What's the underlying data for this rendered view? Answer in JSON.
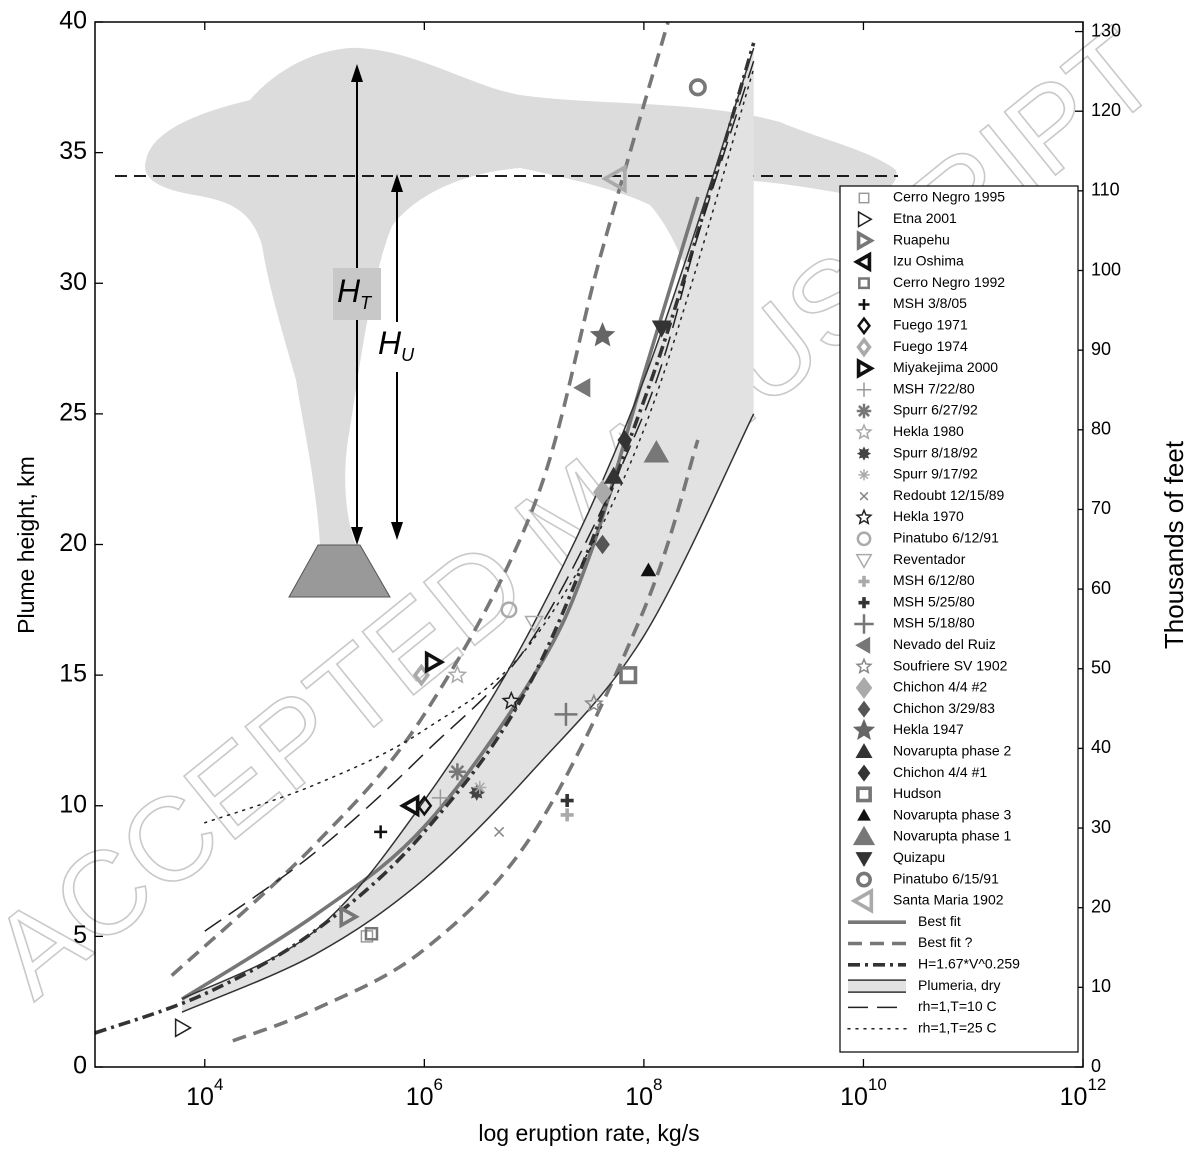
{
  "chart_data": {
    "type": "scatter",
    "xscale": "log",
    "xlim": [
      1000,
      1000000000000
    ],
    "xticks": [
      {
        "value": 10000,
        "label": "10",
        "exponent": "4"
      },
      {
        "value": 1000000,
        "label": "10",
        "exponent": "6"
      },
      {
        "value": 100000000,
        "label": "10",
        "exponent": "8"
      },
      {
        "value": 10000000000,
        "label": "10",
        "exponent": "10"
      },
      {
        "value": 1000000000000,
        "label": "10",
        "exponent": "12"
      }
    ],
    "ylim": [
      0,
      40
    ],
    "yticks": [
      0,
      5,
      10,
      15,
      20,
      25,
      30,
      35,
      40
    ],
    "y2lim": [
      0,
      131.2
    ],
    "y2ticks": [
      0,
      10,
      20,
      30,
      40,
      50,
      60,
      70,
      80,
      90,
      100,
      110,
      120,
      130
    ],
    "x_label": "log eruption rate, kg/s",
    "y_label": "Plume height, km",
    "y2_label": "Thousands of feet",
    "grid": false,
    "legend": "lower right",
    "watermark": "ACCEPTED MANUSCRIPT",
    "annotations": [
      {
        "text": "H",
        "subscript": "T"
      },
      {
        "text": "H",
        "subscript": "U"
      }
    ],
    "series": [
      {
        "name": "Cerro Negro 1995",
        "marker": "square",
        "color": "#9a9a9a",
        "filled": false,
        "marker_size": "small",
        "weight": "thin",
        "x": [
          300000
        ],
        "values": [
          5
        ]
      },
      {
        "name": "Etna 2001",
        "marker": "tri-right",
        "color": "#222222",
        "filled": false,
        "marker_size": "medium",
        "weight": "thin",
        "x": [
          6200
        ],
        "values": [
          1.5
        ]
      },
      {
        "name": "Ruapehu",
        "marker": "tri-right",
        "color": "#777777",
        "filled": false,
        "marker_size": "medium",
        "weight": "thick",
        "x": [
          200000
        ],
        "values": [
          5.75
        ]
      },
      {
        "name": "Izu Oshima",
        "marker": "tri-left",
        "color": "#111111",
        "filled": false,
        "marker_size": "medium",
        "weight": "thick",
        "x": [
          760000
        ],
        "values": [
          10
        ]
      },
      {
        "name": "Cerro Negro 1992",
        "marker": "square",
        "color": "#777777",
        "filled": false,
        "marker_size": "small",
        "weight": "medium",
        "x": [
          330000
        ],
        "values": [
          5.1
        ]
      },
      {
        "name": "MSH 3/8/05",
        "marker": "plus",
        "color": "#111111",
        "filled": false,
        "marker_size": "small",
        "weight": "medium",
        "x": [
          400000
        ],
        "values": [
          9
        ]
      },
      {
        "name": "Fuego 1971",
        "marker": "diamond",
        "color": "#111111",
        "filled": false,
        "marker_size": "medium",
        "weight": "medium",
        "x": [
          1000000
        ],
        "values": [
          10
        ]
      },
      {
        "name": "Fuego 1974",
        "marker": "diamond",
        "color": "#aaaaaa",
        "filled": false,
        "marker_size": "medium",
        "weight": "thick",
        "x": [
          940000
        ],
        "values": [
          15
        ]
      },
      {
        "name": "Miyakejima 2000",
        "marker": "tri-right",
        "color": "#111111",
        "filled": false,
        "marker_size": "medium",
        "weight": "thick",
        "x": [
          1200000
        ],
        "values": [
          15.5
        ]
      },
      {
        "name": "MSH 7/22/80",
        "marker": "plus",
        "color": "#999999",
        "filled": false,
        "marker_size": "medium",
        "weight": "thin",
        "x": [
          1400000
        ],
        "values": [
          10.3
        ]
      },
      {
        "name": "Spurr 6/27/92",
        "marker": "asterisk",
        "color": "#777777",
        "filled": false,
        "marker_size": "medium",
        "weight": "medium",
        "x": [
          2000000
        ],
        "values": [
          11.3
        ]
      },
      {
        "name": "Hekla 1980",
        "marker": "star",
        "color": "#aaaaaa",
        "filled": false,
        "marker_size": "medium",
        "weight": "thin",
        "x": [
          2000000
        ],
        "values": [
          15
        ]
      },
      {
        "name": "Spurr 8/18/92",
        "marker": "burst",
        "color": "#444444",
        "filled": true,
        "marker_size": "small",
        "weight": "thin",
        "x": [
          3000000
        ],
        "values": [
          10.5
        ]
      },
      {
        "name": "Spurr 9/17/92",
        "marker": "asterisk",
        "color": "#aaaaaa",
        "filled": false,
        "marker_size": "small",
        "weight": "thin",
        "x": [
          3200000
        ],
        "values": [
          10.7
        ]
      },
      {
        "name": "Redoubt 12/15/89",
        "marker": "x",
        "color": "#888888",
        "filled": false,
        "marker_size": "small",
        "weight": "thin",
        "x": [
          4800000
        ],
        "values": [
          9
        ]
      },
      {
        "name": "Hekla 1970",
        "marker": "star",
        "color": "#222222",
        "filled": false,
        "marker_size": "medium",
        "weight": "thin",
        "x": [
          6200000
        ],
        "values": [
          14
        ]
      },
      {
        "name": "Pinatubo 6/12/91",
        "marker": "circle",
        "color": "#aaaaaa",
        "filled": false,
        "marker_size": "medium",
        "weight": "medium",
        "x": [
          5900000
        ],
        "values": [
          17.5
        ]
      },
      {
        "name": "Reventador",
        "marker": "tri-down",
        "color": "#aaaaaa",
        "filled": false,
        "marker_size": "medium",
        "weight": "thin",
        "x": [
          10000000
        ],
        "values": [
          17
        ]
      },
      {
        "name": "MSH 6/12/80",
        "marker": "plus",
        "color": "#aaaaaa",
        "filled": false,
        "marker_size": "small",
        "weight": "thick",
        "x": [
          20000000
        ],
        "values": [
          9.65
        ]
      },
      {
        "name": "MSH 5/25/80",
        "marker": "plus",
        "color": "#333333",
        "filled": false,
        "marker_size": "small",
        "weight": "thick",
        "x": [
          20000000
        ],
        "values": [
          10.2
        ]
      },
      {
        "name": "MSH 5/18/80",
        "marker": "plus",
        "color": "#777777",
        "filled": false,
        "marker_size": "large",
        "weight": "medium",
        "x": [
          19500000
        ],
        "values": [
          13.5
        ]
      },
      {
        "name": "Nevado del Ruiz",
        "marker": "tri-left",
        "color": "#777777",
        "filled": true,
        "marker_size": "medium",
        "weight": "thin",
        "x": [
          28000000
        ],
        "values": [
          26
        ]
      },
      {
        "name": "Soufriere SV 1902",
        "marker": "star",
        "color": "#888888",
        "filled": false,
        "marker_size": "medium",
        "weight": "thin",
        "x": [
          35000000
        ],
        "values": [
          13.9
        ]
      },
      {
        "name": "Chichon 4/4 #2",
        "marker": "diamond",
        "color": "#aaaaaa",
        "filled": true,
        "marker_size": "large",
        "weight": "thin",
        "x": [
          42000000
        ],
        "values": [
          22
        ]
      },
      {
        "name": "Chichon 3/29/83",
        "marker": "diamond",
        "color": "#555555",
        "filled": true,
        "marker_size": "medium",
        "weight": "thin",
        "x": [
          42000000
        ],
        "values": [
          20
        ]
      },
      {
        "name": "Hekla 1947",
        "marker": "star",
        "color": "#666666",
        "filled": true,
        "marker_size": "large",
        "weight": "thin",
        "x": [
          42000000
        ],
        "values": [
          28
        ]
      },
      {
        "name": "Novarupta phase 2",
        "marker": "tri-up",
        "color": "#333333",
        "filled": true,
        "marker_size": "medium",
        "weight": "thin",
        "x": [
          53000000
        ],
        "values": [
          22.6
        ]
      },
      {
        "name": "Chichon 4/4 #1",
        "marker": "diamond",
        "color": "#333333",
        "filled": true,
        "marker_size": "medium",
        "weight": "thin",
        "x": [
          67000000
        ],
        "values": [
          24
        ]
      },
      {
        "name": "Hudson",
        "marker": "square",
        "color": "#777777",
        "filled": false,
        "marker_size": "medium",
        "weight": "thick",
        "x": [
          72000000
        ],
        "values": [
          15
        ]
      },
      {
        "name": "Novarupta phase 3",
        "marker": "tri-up",
        "color": "#111111",
        "filled": true,
        "marker_size": "small",
        "weight": "thin",
        "x": [
          110000000
        ],
        "values": [
          19
        ]
      },
      {
        "name": "Novarupta phase 1",
        "marker": "tri-up",
        "color": "#777777",
        "filled": true,
        "marker_size": "large",
        "weight": "thin",
        "x": [
          130000000
        ],
        "values": [
          23.5
        ]
      },
      {
        "name": "Quizapu",
        "marker": "tri-down",
        "color": "#333333",
        "filled": true,
        "marker_size": "medium",
        "weight": "thin",
        "x": [
          145000000
        ],
        "values": [
          28.3
        ]
      },
      {
        "name": "Pinatubo 6/15/91",
        "marker": "circle",
        "color": "#777777",
        "filled": false,
        "marker_size": "medium",
        "weight": "thick",
        "x": [
          310000000
        ],
        "values": [
          37.5
        ]
      },
      {
        "name": "Santa Maria 1902",
        "marker": "tri-left",
        "color": "#aaaaaa",
        "filled": false,
        "marker_size": "large",
        "weight": "thick",
        "x": [
          56000000
        ],
        "values": [
          34
        ]
      }
    ],
    "lines": [
      {
        "name": "Best fit",
        "style": "solid",
        "color": "#777777",
        "weight": "thick",
        "x": [
          6200,
          100000,
          1000000,
          10000000,
          31600000,
          100000000,
          310000000
        ],
        "values": [
          2.6,
          5.8,
          9.2,
          15,
          19.5,
          26.5,
          33.3
        ]
      },
      {
        "name": "Best fit  ?",
        "style": "dashed",
        "color": "#777777",
        "weight": "thick",
        "x": [
          5000,
          100000,
          1000000,
          10000000,
          40000000,
          166000000,
          null,
          18000,
          100000,
          1000000,
          10000000,
          100000000,
          310000000
        ],
        "values": [
          3.5,
          8.5,
          13.5,
          21.5,
          31,
          40,
          null,
          1,
          2.2,
          4.5,
          9,
          17.5,
          24
        ]
      },
      {
        "name": "H=1.67*V^0.259",
        "style": "dashdot",
        "color": "#333333",
        "weight": "thick",
        "x": [
          1000,
          10000,
          100000,
          1000000,
          10000000,
          100000000,
          400000000,
          1000000000
        ],
        "values": [
          1.3,
          2.8,
          5.2,
          9,
          15,
          25.5,
          33.5,
          39.2
        ]
      },
      {
        "name": "Plumeria, dry",
        "style": "solid",
        "color": "#333333",
        "weight": "thin",
        "fill": "#e2e2e2",
        "x": [
          6200,
          100000,
          1000000,
          10000000,
          100000000,
          1000000000
        ],
        "values": [
          2.6,
          5.2,
          10.2,
          17,
          26.3,
          39
        ],
        "lower_values": [
          2.1,
          4.3,
          7.2,
          11.4,
          16.5,
          25
        ]
      },
      {
        "name": "rh=1,T=10  C",
        "style": "longdash",
        "color": "#222222",
        "weight": "thin",
        "x": [
          10000,
          100000,
          1000000,
          10000000,
          100000000,
          320000000,
          1000000000
        ],
        "values": [
          5.2,
          8.2,
          12,
          16.5,
          25,
          32,
          38.5
        ]
      },
      {
        "name": "rh=1,T=25  C",
        "style": "dotted",
        "color": "#222222",
        "weight": "thin",
        "x": [
          10000,
          100000,
          1000000,
          10000000,
          100000000,
          1000000000
        ],
        "values": [
          9.35,
          10.8,
          12.9,
          16.4,
          24.4,
          38.2
        ]
      }
    ]
  }
}
